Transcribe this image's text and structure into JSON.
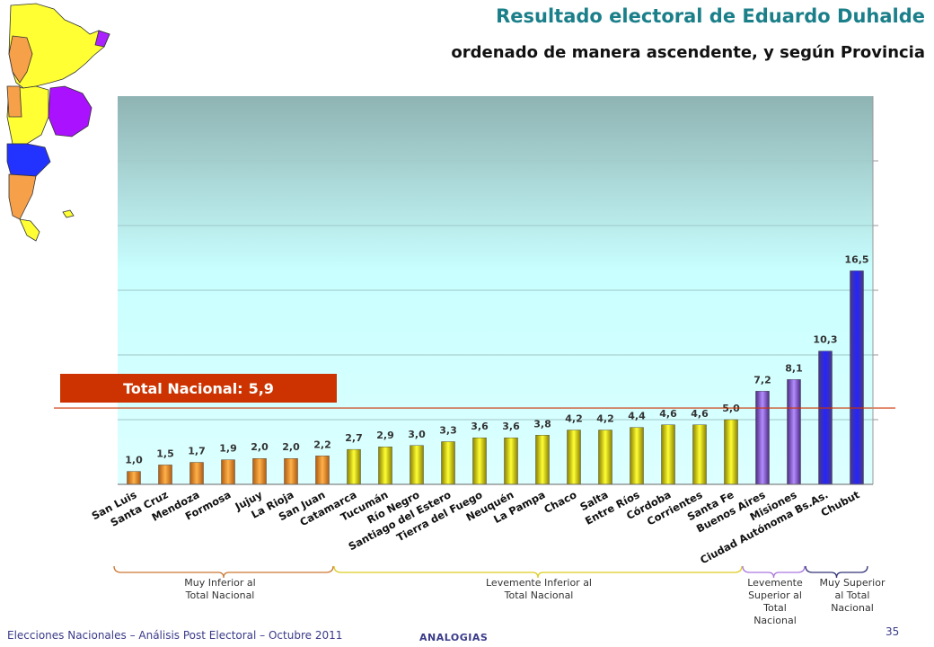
{
  "header": {
    "title": "Resultado electoral de Eduardo Duhalde",
    "subtitle": "ordenado de manera ascendente, y según Provincia"
  },
  "total_nacional": {
    "label": "Total Nacional:",
    "value": "5,9"
  },
  "groups": [
    {
      "label_line1": "Muy Inferior al",
      "label_line2": "Total Nacional",
      "label_line3": "",
      "label_line4": "",
      "color": "#cc7733"
    },
    {
      "label_line1": "Levemente Inferior al",
      "label_line2": "Total Nacional",
      "label_line3": "",
      "label_line4": "",
      "color": "#ddcc22"
    },
    {
      "label_line1": "Levemente",
      "label_line2": "Superior  al",
      "label_line3": "Total",
      "label_line4": "Nacional",
      "color": "#aa77dd"
    },
    {
      "label_line1": "Muy Superior",
      "label_line2": "al Total",
      "label_line3": "Nacional",
      "label_line4": "",
      "color": "#333377"
    }
  ],
  "footer": {
    "text": "Elecciones Nacionales – Análisis Post Electoral – Octubre 2011",
    "brand": "ANALOGIAS",
    "page": "35"
  },
  "chart_data": {
    "type": "bar",
    "title": "Resultado electoral de Eduardo Duhalde",
    "subtitle": "ordenado de manera ascendente, y según Provincia",
    "categories": [
      "San Luis",
      "Santa Cruz",
      "Mendoza",
      "Formosa",
      "Jujuy",
      "La Rioja",
      "San Juan",
      "Catamarca",
      "Tucumán",
      "Río Negro",
      "Santiago del Estero",
      "Tierra del Fuego",
      "Neuquén",
      "La Pampa",
      "Chaco",
      "Salta",
      "Entre Ríos",
      "Córdoba",
      "Corrientes",
      "Santa Fe",
      "Buenos Aires",
      "Misiones",
      "Ciudad Autónoma Bs.As.",
      "Chubut"
    ],
    "values": [
      1.0,
      1.5,
      1.7,
      1.9,
      2.0,
      2.0,
      2.2,
      2.7,
      2.9,
      3.0,
      3.3,
      3.6,
      3.6,
      3.8,
      4.2,
      4.2,
      4.4,
      4.6,
      4.6,
      5.0,
      7.2,
      8.1,
      10.3,
      16.5
    ],
    "value_labels": [
      "1,0",
      "1,5",
      "1,7",
      "1,9",
      "2,0",
      "2,0",
      "2,2",
      "2,7",
      "2,9",
      "3,0",
      "3,3",
      "3,6",
      "3,6",
      "3,8",
      "4,2",
      "4,2",
      "4,4",
      "4,6",
      "4,6",
      "5,0",
      "7,2",
      "8,1",
      "10,3",
      "16,5"
    ],
    "bar_groups": [
      "orange",
      "orange",
      "orange",
      "orange",
      "orange",
      "orange",
      "orange",
      "yellow",
      "yellow",
      "yellow",
      "yellow",
      "yellow",
      "yellow",
      "yellow",
      "yellow",
      "yellow",
      "yellow",
      "yellow",
      "yellow",
      "yellow",
      "purple",
      "purple",
      "blue",
      "blue"
    ],
    "reference_line": 5.9,
    "ylim": [
      0,
      30
    ],
    "grid": true,
    "colors": {
      "orange": "#ee8a22",
      "yellow": "#f2ee10",
      "purple": "#9a6be0",
      "blue": "#2a2aff",
      "reference": "#cc3300"
    }
  }
}
